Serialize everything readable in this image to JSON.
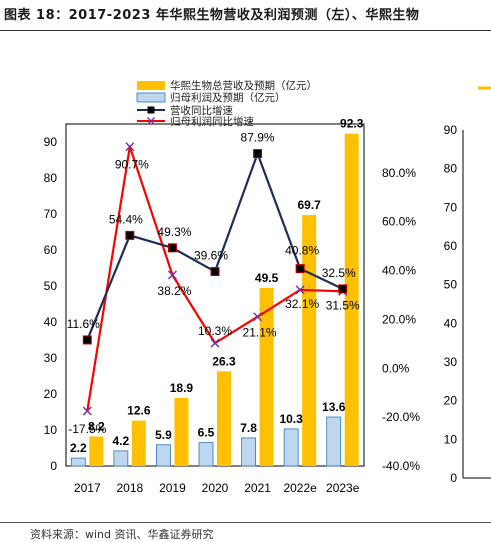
{
  "title": "图表 18：2017-2023 年华熙生物营收及利润预测（左）、华熙生物",
  "source": "资料来源：wind 资讯、华鑫证券研究",
  "colors": {
    "revenue_bar": "#FFC000",
    "profit_bar": "#BDD7EE",
    "profit_bar_edge": "#2E75B6",
    "revenue_growth_line": "#1F2D5A",
    "profit_growth_line": "#FF0000"
  },
  "chart_data": [
    {
      "type": "bar+line",
      "categories": [
        "2017",
        "2018",
        "2019",
        "2020",
        "2021",
        "2022e",
        "2023e"
      ],
      "left_axis": {
        "ylim": [
          0,
          95
        ],
        "ticks": [
          0,
          10,
          20,
          30,
          40,
          50,
          60,
          70,
          80,
          90
        ]
      },
      "right_axis": {
        "ylim": [
          -40,
          100
        ],
        "ticks": [
          "-40.0%",
          "-20.0%",
          "0.0%",
          "20.0%",
          "40.0%",
          "60.0%",
          "80.0%"
        ]
      },
      "legend_placement": "top",
      "series": [
        {
          "name": "华熙生物总营收及预期（亿元）",
          "kind": "bar",
          "axis": "left",
          "values": [
            8.2,
            12.6,
            18.9,
            26.3,
            49.5,
            69.7,
            92.3
          ],
          "labels": [
            "8.2",
            "12.6",
            "18.9",
            "26.3",
            "49.5",
            "69.7",
            "92.3"
          ]
        },
        {
          "name": "归母利润及预期（亿元）",
          "kind": "bar",
          "axis": "left",
          "values": [
            2.2,
            4.2,
            5.9,
            6.5,
            7.8,
            10.3,
            13.6
          ],
          "labels": [
            "2.2",
            "4.2",
            "5.9",
            "6.5",
            "7.8",
            "10.3",
            "13.6"
          ]
        },
        {
          "name": "营收同比增速",
          "kind": "line",
          "axis": "right",
          "marker": "square",
          "values": [
            11.6,
            54.4,
            49.3,
            39.6,
            87.9,
            40.8,
            32.5
          ],
          "labels": [
            "11.6%",
            "54.4%",
            "49.3%",
            "39.6%",
            "87.9%",
            "40.8%",
            "32.5%"
          ]
        },
        {
          "name": "归母利润同比增速",
          "kind": "line",
          "axis": "right",
          "marker": "x",
          "values": [
            -17.5,
            90.7,
            38.2,
            10.3,
            21.1,
            32.1,
            31.5
          ],
          "labels": [
            "-17.5%",
            "90.7%",
            "38.2%",
            "10.3%",
            "21.1%",
            "32.1%",
            "31.5%"
          ]
        }
      ]
    },
    {
      "type": "bar",
      "partial": true,
      "left_axis": {
        "ticks": [
          0,
          10,
          20,
          30,
          40,
          50,
          60,
          70,
          80,
          90
        ]
      }
    }
  ]
}
